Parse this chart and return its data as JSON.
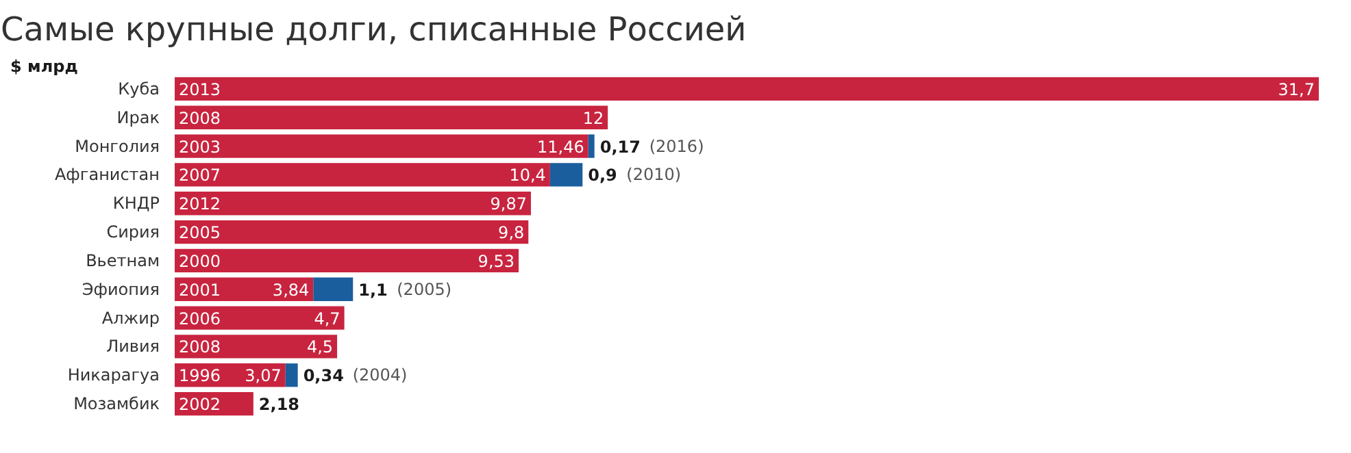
{
  "chart_data": {
    "type": "bar",
    "orientation": "horizontal",
    "stacked": true,
    "title": "Самые крупные долги, списанные Россией",
    "ylabel": "$ млрд",
    "categories": [
      "Куба",
      "Ирак",
      "Монголия",
      "Афганистан",
      "КНДР",
      "Сирия",
      "Вьетнам",
      "Эфиопия",
      "Алжир",
      "Ливия",
      "Никарагуа",
      "Мозамбик"
    ],
    "series": [
      {
        "color": "#c8243f",
        "values": [
          31.7,
          12,
          11.46,
          10.4,
          9.87,
          9.8,
          9.53,
          3.84,
          4.7,
          4.5,
          3.07,
          2.18
        ],
        "value_labels": [
          "31,7",
          "12",
          "11,46",
          "10,4",
          "9,87",
          "9,8",
          "9,53",
          "3,84",
          "4,7",
          "4,5",
          "3,07",
          "2,18"
        ]
      },
      {
        "color": "#1b5e9e",
        "values": [
          null,
          null,
          0.17,
          0.9,
          null,
          null,
          null,
          1.1,
          null,
          null,
          0.34,
          null
        ],
        "value_labels": [
          null,
          null,
          "0,17 (2016)",
          "0,9 (2010)",
          null,
          null,
          null,
          "1,1 (2005)",
          null,
          null,
          "0,34 (2004)",
          null
        ]
      }
    ],
    "annotations": [
      {
        "text": "2013",
        "y": "Куба"
      },
      {
        "text": "2008",
        "y": "Ирак"
      },
      {
        "text": "2003",
        "y": "Монголия"
      },
      {
        "text": "2007",
        "y": "Афганистан"
      },
      {
        "text": "2012",
        "y": "КНДР"
      },
      {
        "text": "2005",
        "y": "Сирия"
      },
      {
        "text": "2000",
        "y": "Вьетнам"
      },
      {
        "text": "2001",
        "y": "Эфиопия"
      },
      {
        "text": "2006",
        "y": "Алжир"
      },
      {
        "text": "2008",
        "y": "Ливия"
      },
      {
        "text": "1996",
        "y": "Никарагуа"
      },
      {
        "text": "2002",
        "y": "Мозамбик"
      }
    ],
    "grid": false
  }
}
